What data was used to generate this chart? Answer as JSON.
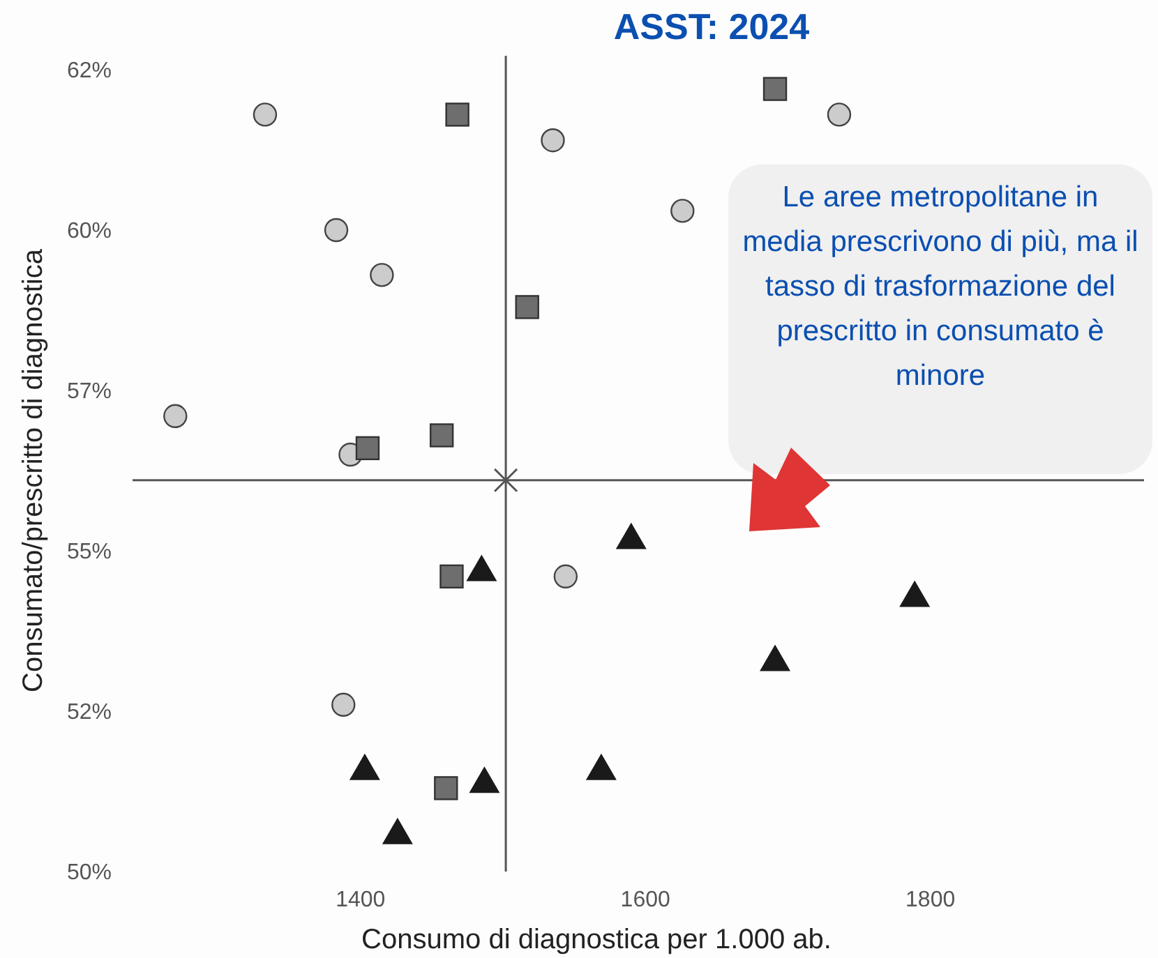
{
  "chart_data": {
    "type": "scatter",
    "title": "ASST: 2024",
    "xlabel": "Consumo di diagnostica per 1.000 ab.",
    "ylabel": "Consumato/prescritto di diagnostica",
    "xlim": [
      1240,
      1950
    ],
    "xticks": [
      1400,
      1600,
      1800
    ],
    "ylim": [
      50,
      62.5
    ],
    "yticks": [
      {
        "value": 50,
        "label": "50%"
      },
      {
        "value": 52.5,
        "label": "52%"
      },
      {
        "value": 55,
        "label": "55%"
      },
      {
        "value": 57.5,
        "label": "57%"
      },
      {
        "value": 60,
        "label": "60%"
      },
      {
        "value": 62.5,
        "label": "62%"
      }
    ],
    "grid": false,
    "series": [
      {
        "color": "#cccccc",
        "marker": "circle",
        "x": [
          1333,
          1270,
          1383,
          1415,
          1393,
          1388,
          1535,
          1626,
          1544,
          1736
        ],
        "values": [
          61.8,
          57.1,
          60.0,
          59.3,
          56.5,
          52.6,
          61.4,
          60.3,
          54.6,
          61.8
        ]
      },
      {
        "color": "#6e6e6e",
        "marker": "square",
        "x": [
          1468,
          1691,
          1517,
          1405,
          1457,
          1464,
          1460
        ],
        "values": [
          61.8,
          62.2,
          58.8,
          56.6,
          56.8,
          54.6,
          51.3
        ]
      },
      {
        "color": "#1a1a1a",
        "marker": "triangle",
        "x": [
          1590,
          1485,
          1789,
          1691,
          1403,
          1487,
          1569,
          1426
        ],
        "values": [
          55.2,
          54.7,
          54.3,
          53.3,
          51.6,
          51.4,
          51.6,
          50.6
        ]
      },
      {
        "color": "#555555",
        "marker": "cross",
        "x": [
          1502
        ],
        "values": [
          56.1
        ]
      }
    ],
    "ref_lines": [
      {
        "axis": "x",
        "value": 1502,
        "color": "#555555"
      },
      {
        "axis": "y",
        "value": 56.1,
        "color": "#555555"
      }
    ],
    "annotations": [
      "Le aree metropolitane in media prescrivono di più, ma il tasso di trasformazione del prescritto in consumato è minore"
    ]
  }
}
